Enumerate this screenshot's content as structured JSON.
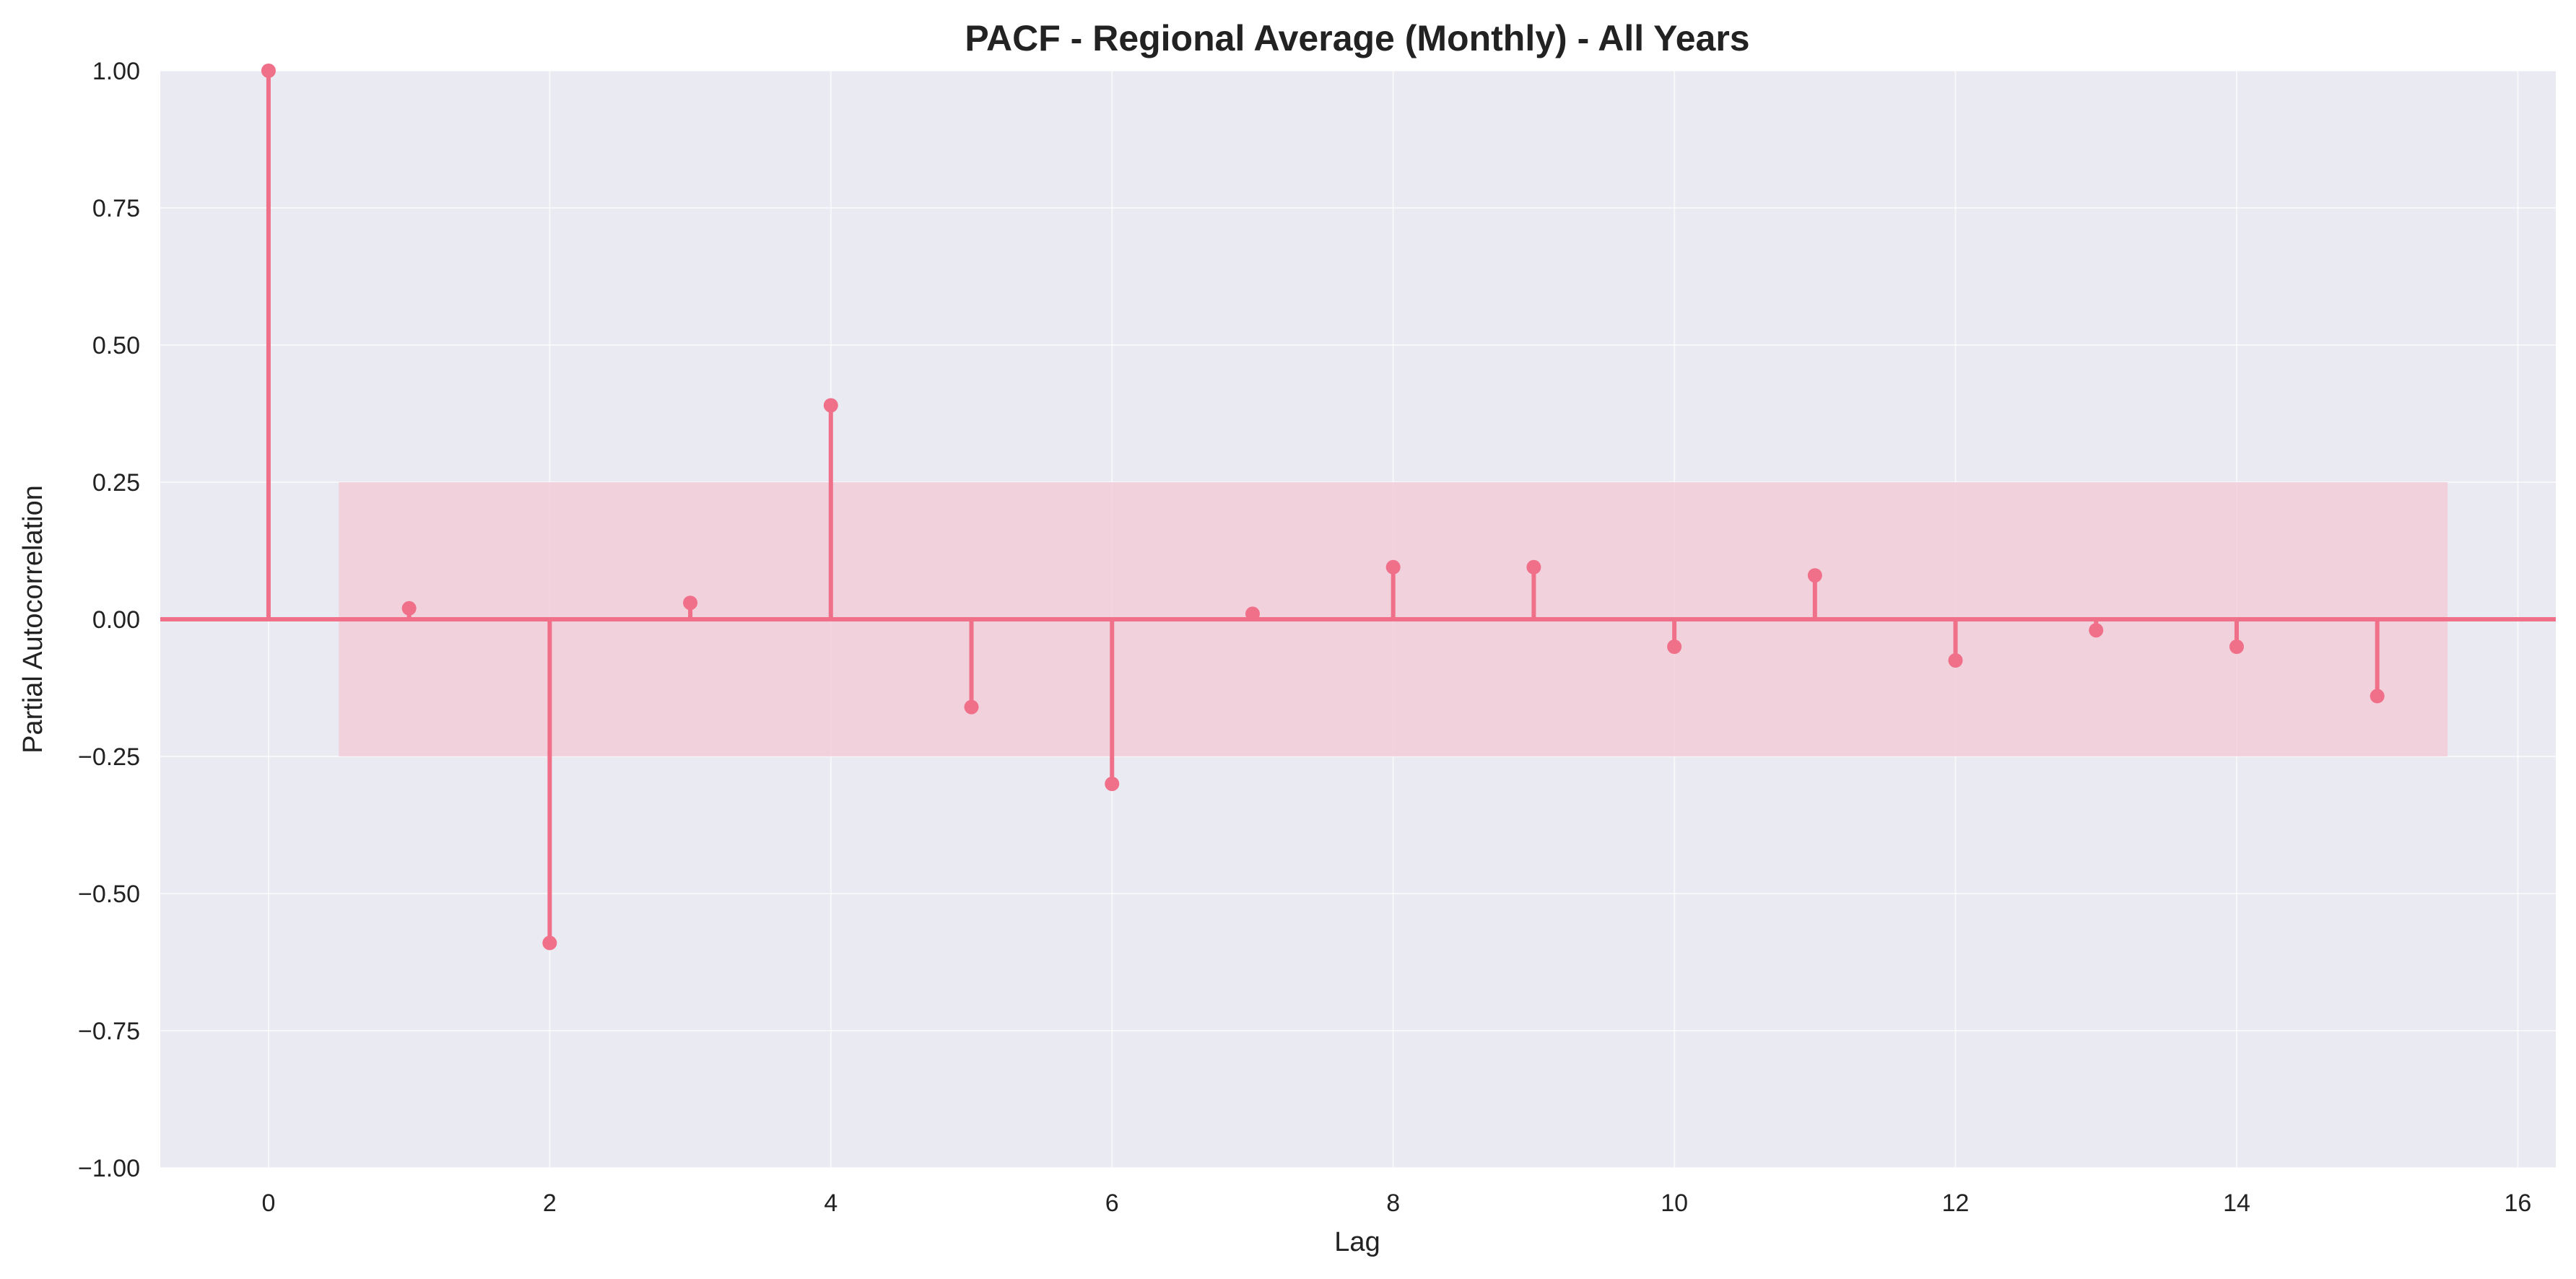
{
  "colors": {
    "stem": "#f0708a",
    "band": "#f3c8d4",
    "background": "#eaeaf2",
    "grid": "#ffffff",
    "text": "#222222"
  },
  "chart_data": {
    "type": "stem",
    "title": "PACF - Regional Average (Monthly) - All Years",
    "xlabel": "Lag",
    "ylabel": "Partial Autocorrelation",
    "x": [
      0,
      1,
      2,
      3,
      4,
      5,
      6,
      7,
      8,
      9,
      10,
      11,
      12,
      13,
      14,
      15
    ],
    "values": [
      1.0,
      0.02,
      -0.59,
      0.03,
      0.39,
      -0.16,
      -0.3,
      0.01,
      0.095,
      0.095,
      -0.05,
      0.08,
      -0.075,
      -0.02,
      -0.05,
      -0.14
    ],
    "confidence_interval": [
      -0.25,
      0.25
    ],
    "xlim": [
      -0.77,
      16.27
    ],
    "ylim": [
      -1.0,
      1.0
    ],
    "x_ticks": [
      0,
      2,
      4,
      6,
      8,
      10,
      12,
      14,
      16
    ],
    "y_ticks": [
      -1.0,
      -0.75,
      -0.5,
      -0.25,
      0.0,
      0.25,
      0.5,
      0.75,
      1.0
    ],
    "x_tick_labels": [
      "0",
      "2",
      "4",
      "6",
      "8",
      "10",
      "12",
      "14",
      "16"
    ],
    "y_tick_labels": [
      "−1.00",
      "−0.75",
      "−0.50",
      "−0.25",
      "0.00",
      "0.25",
      "0.50",
      "0.75",
      "1.00"
    ],
    "grid": true
  }
}
